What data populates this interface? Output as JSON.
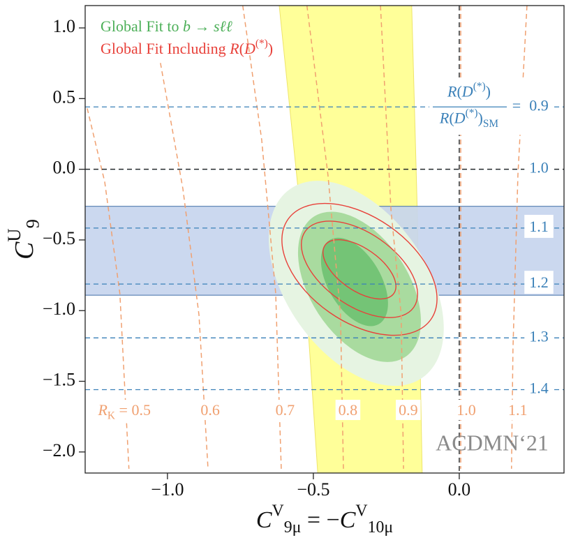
{
  "chart_data": {
    "type": "contour",
    "xlabel": [
      {
        "t": "C",
        "s": "i"
      },
      {
        "t": "V",
        "s": "sup"
      },
      {
        "t": "9μ",
        "s": "sub"
      },
      {
        "t": " = −"
      },
      {
        "t": "C",
        "s": "i"
      },
      {
        "t": "V",
        "s": "sup"
      },
      {
        "t": "10μ",
        "s": "sub"
      }
    ],
    "ylabel": [
      {
        "t": "C",
        "s": "i"
      },
      {
        "t": "U",
        "s": "sup"
      },
      {
        "t": "9",
        "s": "sub"
      }
    ],
    "xlim": [
      -1.282,
      0.359
    ],
    "ylim": [
      -2.149,
      1.158
    ],
    "xticks": [
      {
        "value": -1,
        "label": "−1.0"
      },
      {
        "value": -0.5,
        "label": "−0.5"
      },
      {
        "value": 0,
        "label": "0.0"
      }
    ],
    "yticks": [
      {
        "value": 1,
        "label": "1.0"
      },
      0.5,
      {
        "value": 0,
        "label": "0.0"
      },
      {
        "value": -0.5,
        "label": "−0.5"
      },
      {
        "value": -1,
        "label": "−1.0"
      },
      {
        "value": -1.5,
        "label": "−1.5"
      },
      {
        "value": -2,
        "label": "−2.0"
      }
    ],
    "legend": [
      {
        "parts": [
          {
            "t": "Global Fit to "
          },
          {
            "t": "b → sℓℓ",
            "s": "i"
          }
        ],
        "color": "#4caf58"
      },
      {
        "parts": [
          {
            "t": "Global Fit Including "
          },
          {
            "t": "R",
            "s": "i"
          },
          {
            "t": "("
          },
          {
            "t": "D",
            "s": "i"
          },
          {
            "t": "(*)",
            "s": "sup"
          },
          {
            "t": ")"
          }
        ],
        "color": "#e8413a"
      }
    ],
    "rk_band": {
      "color": "#ffff99",
      "left": {
        "x": [
          -0.617,
          -0.545,
          -0.485
        ],
        "y": [
          1.158,
          -0.287,
          -2.149
        ]
      },
      "right": {
        "x": [
          -0.163,
          -0.144,
          -0.127
        ],
        "y": [
          1.158,
          -0.287,
          -2.149
        ]
      }
    },
    "rd_band": {
      "color": "#c7d5ee",
      "edge": "#3f6fa8",
      "y": [
        -0.262,
        -0.891
      ]
    },
    "green_fit": [
      {
        "color": "#e6f4e2",
        "cx": -0.353,
        "cy": -0.807,
        "rx": 0.395,
        "ry": 0.495,
        "angle": 55
      },
      {
        "color": "#a9db9f",
        "cx": -0.342,
        "cy": -0.832,
        "rx": 0.287,
        "ry": 0.347,
        "angle": 57
      },
      {
        "color": "#74c476",
        "cx": -0.359,
        "cy": -0.797,
        "rx": 0.167,
        "ry": 0.188,
        "angle": 60
      }
    ],
    "red_fit": {
      "color": "#e8413a",
      "ellipses": [
        {
          "cx": -0.342,
          "cy": -0.708,
          "rx": 0.299,
          "ry": 0.371,
          "angle": 35
        },
        {
          "cx": -0.342,
          "cy": -0.708,
          "rx": 0.227,
          "ry": 0.257,
          "angle": 35
        },
        {
          "cx": -0.342,
          "cy": -0.708,
          "rx": 0.144,
          "ry": 0.149,
          "angle": 35
        }
      ]
    },
    "rk_color": "#f0a070",
    "rk_symbol": [
      {
        "t": "R",
        "s": "i"
      },
      {
        "t": "K",
        "s": "sub"
      },
      {
        "t": " = "
      }
    ],
    "rk_contours": [
      {
        "level": 0.5,
        "x": [
          -1.275,
          -1.215,
          -1.163,
          -1.132
        ],
        "y": [
          0.431,
          -0.089,
          -0.881,
          -2.119
        ]
      },
      {
        "level": 0.6,
        "x": [
          -1.024,
          -0.947,
          -0.892,
          -0.861
        ],
        "y": [
          0.752,
          -0.139,
          -1.03,
          -2.119
        ]
      },
      {
        "level": 0.7,
        "x": [
          -0.742,
          -0.677,
          -0.629,
          -0.61
        ],
        "y": [
          1.158,
          0.208,
          -0.881,
          -2.119
        ]
      },
      {
        "level": 0.8,
        "x": [
          -0.522,
          -0.45,
          -0.407,
          -0.397
        ],
        "y": [
          1.158,
          -0.04,
          -1.03,
          -2.119
        ]
      },
      {
        "level": 0.9,
        "x": [
          -0.27,
          -0.234,
          -0.199,
          -0.191
        ],
        "y": [
          1.158,
          -0.287,
          -1.03,
          -2.119
        ]
      },
      {
        "level": {
          "value": 1,
          "label": "1.0"
        },
        "x": [
          0.005,
          0.005
        ],
        "y": [
          1.158,
          -2.119
        ]
      },
      {
        "level": 1.1,
        "x": [
          0.232,
          0.201,
          0.184,
          0.179
        ],
        "y": [
          1.158,
          -0.04,
          -1.277,
          -2.119
        ]
      }
    ],
    "rd_color": "#3a80b8",
    "rd_ratio": {
      "numerator": [
        {
          "t": "R",
          "s": "i"
        },
        {
          "t": "("
        },
        {
          "t": "D",
          "s": "i"
        },
        {
          "t": "(*)",
          "s": "sup"
        },
        {
          "t": ")"
        }
      ],
      "denominator": [
        {
          "t": "R",
          "s": "i"
        },
        {
          "t": "("
        },
        {
          "t": "D",
          "s": "i"
        },
        {
          "t": "(*)",
          "s": "sup"
        },
        {
          "t": ")"
        },
        {
          "t": "SM",
          "s": "sub"
        }
      ],
      "rel": "="
    },
    "rd_lines": [
      {
        "level": 0.9,
        "y": 0.441
      },
      {
        "level": {
          "value": 1,
          "label": "1.0"
        },
        "y": 0
      },
      {
        "level": 1.1,
        "y": -0.416
      },
      {
        "level": 1.2,
        "y": -0.812
      },
      {
        "level": 1.3,
        "y": -1.193
      },
      {
        "level": 1.4,
        "y": -1.559
      }
    ],
    "reference_x": 0,
    "reference_y": 0,
    "watermark": "ACDMN‘21"
  }
}
